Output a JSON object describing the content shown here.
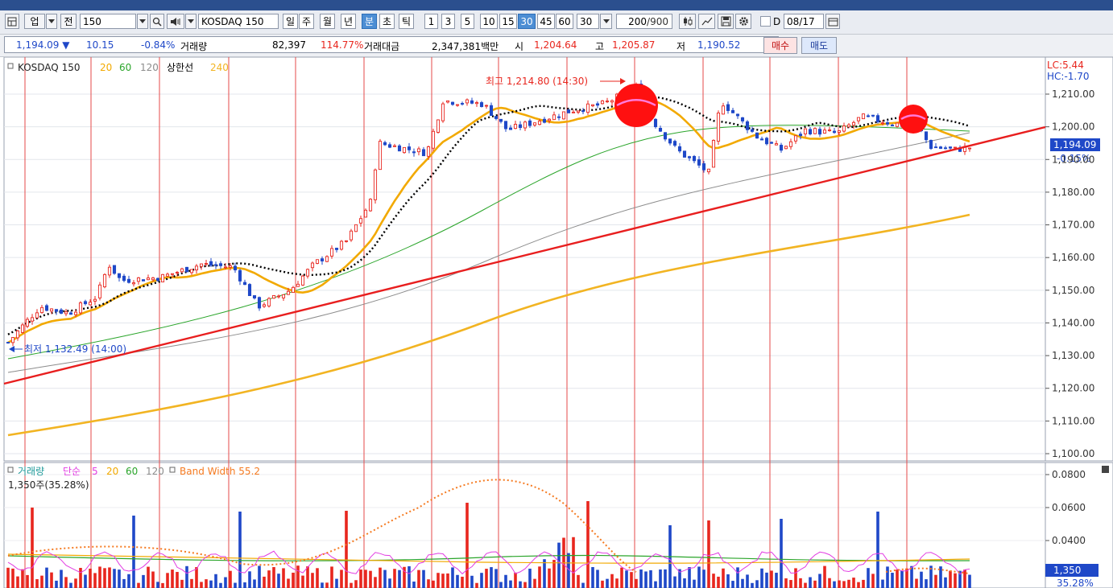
{
  "toolbar": {
    "market": "업",
    "prev_label": "전",
    "code": "150",
    "symbol_name": "KOSDAQ 150",
    "periods": [
      "일",
      "주",
      "월",
      "년",
      "분",
      "초",
      "틱"
    ],
    "active_period": "분",
    "intervals": [
      "1",
      "3",
      "5",
      "10",
      "15",
      "30",
      "45",
      "60"
    ],
    "active_interval": "30",
    "interval_select": "30",
    "count": "200",
    "count_max": "/900",
    "date_label": "D",
    "date": "08/17"
  },
  "quote": {
    "price": "1,194.09",
    "change": "10.15",
    "change_pct": "-0.84%",
    "volume_label": "거래량",
    "volume": "82,397",
    "volume_pct": "114.77%",
    "amount_label": "거래대금",
    "amount": "2,347,381백만",
    "open_label": "시",
    "open": "1,204.64",
    "high_label": "고",
    "high": "1,205.87",
    "low_label": "저",
    "low": "1,190.52",
    "buy_label": "매수",
    "sell_label": "매도"
  },
  "main_legend": {
    "name": "KOSDAQ 150",
    "ma1": "20",
    "ma2": "60",
    "ma3": "120",
    "upper": "상한선",
    "ma4": "240"
  },
  "volume_legend": {
    "name": "거래량",
    "simple": "단순",
    "ma0": "5",
    "ma1": "20",
    "ma2": "60",
    "ma3": "120",
    "bw": "Band Width 55.2",
    "reading": "1,350주(35.28%)"
  },
  "price_axis": {
    "top_label_1": "LC:5.44",
    "top_label_2": "HC:-1.70",
    "ticks": [
      "1,210.00",
      "1,200.00",
      "1,190.00",
      "1,180.00",
      "1,170.00",
      "1,160.00",
      "1,150.00",
      "1,140.00",
      "1,130.00",
      "1,120.00",
      "1,110.00",
      "1,100.00"
    ],
    "current": "1,194.09",
    "current_pct": "-0.15%"
  },
  "volume_axis": {
    "ticks": [
      "0.0800",
      "0.0600",
      "0.0400"
    ],
    "current": "1,350",
    "current_pct": "35.28%"
  },
  "annotations": {
    "high": "최고 1,214.80 (14:30)",
    "low": "최저 1,132.49 (14:00)"
  },
  "colors": {
    "up": "#e8261e",
    "down": "#1f48c8",
    "ma20": "#f2a900",
    "ma60": "#2aa52a",
    "ma120": "#8c8c8c",
    "ma240": "#f2b422",
    "upper": "#000000",
    "trendline": "#e81e1e",
    "session_line": "#e44a4a",
    "circle": "#ff1010",
    "band_width": "#f57a20",
    "vol_ma5": "#e23ce2"
  },
  "icons": [
    "layout-icon",
    "search-icon",
    "speaker-icon",
    "arrow-down-icon",
    "crosshair-icon",
    "line-tool-icon",
    "save-icon",
    "gear-icon",
    "calendar-icon",
    "checkbox-icon"
  ]
}
